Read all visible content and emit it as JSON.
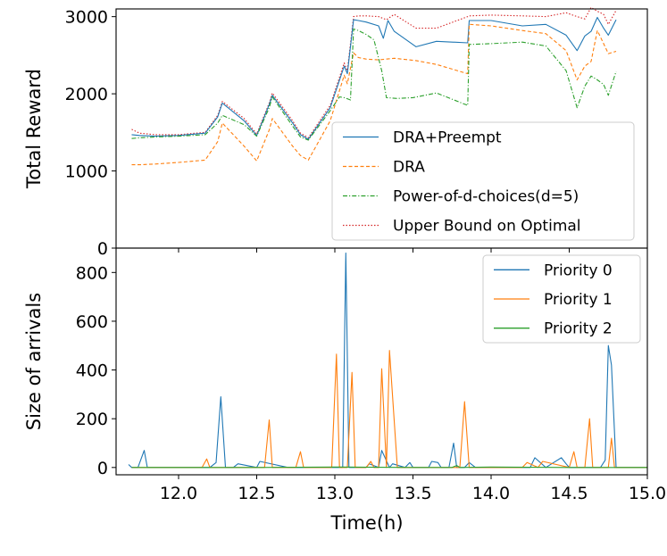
{
  "chart_data": [
    {
      "type": "line",
      "ylabel": "Total Reward",
      "xlabel": "",
      "xlim": [
        11.6,
        15.0
      ],
      "ylim": [
        0,
        3100
      ],
      "xticks": [
        12.0,
        12.5,
        13.0,
        13.5,
        14.0,
        14.5,
        15.0
      ],
      "yticks": [
        0,
        1000,
        2000,
        3000
      ],
      "legend": "lower-right",
      "series": [
        {
          "name": "Upper Bound on Optimal",
          "color": "#d62728",
          "dash": "1.5,2",
          "x": [
            11.7,
            11.75,
            11.85,
            12.0,
            12.17,
            12.25,
            12.28,
            12.42,
            12.5,
            12.58,
            12.6,
            12.73,
            12.78,
            12.83,
            12.97,
            13.06,
            13.08,
            13.12,
            13.15,
            13.2,
            13.28,
            13.33,
            13.38,
            13.52,
            13.65,
            13.85,
            13.86,
            14.0,
            14.2,
            14.35,
            14.48,
            14.55,
            14.6,
            14.64,
            14.68,
            14.72,
            14.75,
            14.8
          ],
          "values": [
            1540,
            1490,
            1470,
            1470,
            1500,
            1720,
            1900,
            1680,
            1480,
            1880,
            2010,
            1650,
            1490,
            1430,
            1850,
            2400,
            2300,
            3000,
            3010,
            3010,
            3000,
            2960,
            3030,
            2850,
            2850,
            3000,
            3010,
            3020,
            3010,
            3000,
            3050,
            3000,
            2970,
            3120,
            3070,
            3030,
            2900,
            3080
          ]
        },
        {
          "name": "DRA+Preempt",
          "color": "#1f77b4",
          "dash": "",
          "x": [
            11.7,
            11.75,
            11.85,
            12.0,
            12.17,
            12.25,
            12.28,
            12.42,
            12.5,
            12.58,
            12.6,
            12.73,
            12.78,
            12.83,
            12.97,
            13.06,
            13.08,
            13.12,
            13.15,
            13.2,
            13.28,
            13.31,
            13.34,
            13.38,
            13.52,
            13.65,
            13.85,
            13.86,
            14.0,
            14.2,
            14.35,
            14.48,
            14.55,
            14.6,
            14.64,
            14.68,
            14.72,
            14.75,
            14.8
          ],
          "values": [
            1470,
            1460,
            1450,
            1460,
            1490,
            1700,
            1880,
            1650,
            1460,
            1860,
            1980,
            1620,
            1470,
            1410,
            1820,
            2360,
            2260,
            2960,
            2950,
            2930,
            2880,
            2720,
            2950,
            2810,
            2610,
            2680,
            2660,
            2950,
            2950,
            2880,
            2900,
            2760,
            2560,
            2750,
            2810,
            2990,
            2850,
            2760,
            2960
          ]
        },
        {
          "name": "DRA",
          "color": "#ff7f0e",
          "dash": "4,2.5",
          "x": [
            11.7,
            11.75,
            11.85,
            12.0,
            12.17,
            12.25,
            12.28,
            12.42,
            12.5,
            12.58,
            12.6,
            12.73,
            12.78,
            12.83,
            12.97,
            13.06,
            13.08,
            13.12,
            13.15,
            13.2,
            13.28,
            13.38,
            13.52,
            13.65,
            13.85,
            13.86,
            14.0,
            14.2,
            14.35,
            14.48,
            14.55,
            14.6,
            14.64,
            14.68,
            14.72,
            14.75,
            14.8
          ],
          "values": [
            1080,
            1080,
            1090,
            1110,
            1140,
            1380,
            1620,
            1320,
            1130,
            1530,
            1680,
            1320,
            1200,
            1140,
            1650,
            2240,
            2130,
            2530,
            2470,
            2450,
            2440,
            2460,
            2430,
            2380,
            2260,
            2900,
            2880,
            2820,
            2780,
            2560,
            2180,
            2360,
            2420,
            2820,
            2650,
            2520,
            2550
          ]
        },
        {
          "name": "Power-of-d-choices(d=5)",
          "color": "#2ca02c",
          "dash": "5,2,1.2,2",
          "x": [
            11.7,
            11.75,
            11.85,
            12.0,
            12.17,
            12.25,
            12.28,
            12.42,
            12.5,
            12.58,
            12.6,
            12.73,
            12.78,
            12.83,
            12.97,
            13.03,
            13.06,
            13.1,
            13.12,
            13.15,
            13.2,
            13.25,
            13.3,
            13.33,
            13.4,
            13.5,
            13.65,
            13.85,
            13.86,
            14.0,
            14.2,
            14.35,
            14.48,
            14.55,
            14.6,
            14.64,
            14.68,
            14.72,
            14.75,
            14.8
          ],
          "values": [
            1420,
            1430,
            1440,
            1450,
            1470,
            1620,
            1720,
            1600,
            1450,
            1820,
            1960,
            1580,
            1440,
            1400,
            1780,
            1960,
            1950,
            1920,
            2840,
            2820,
            2770,
            2700,
            2300,
            1950,
            1940,
            1950,
            2010,
            1850,
            2640,
            2650,
            2670,
            2620,
            2300,
            1820,
            2100,
            2230,
            2180,
            2120,
            1980,
            2290
          ]
        }
      ]
    },
    {
      "type": "line",
      "ylabel": "Size of arrivals",
      "xlabel": "Time(h)",
      "xlim": [
        11.6,
        15.0
      ],
      "ylim": [
        -30,
        900
      ],
      "xticks": [
        12.0,
        12.5,
        13.0,
        13.5,
        14.0,
        14.5,
        15.0
      ],
      "xticklabels": [
        "12.0",
        "12.5",
        "13.0",
        "13.5",
        "14.0",
        "14.5",
        "15.0"
      ],
      "yticks": [
        0,
        200,
        400,
        600,
        800
      ],
      "legend": "top-right",
      "series": [
        {
          "name": "Priority 0",
          "color": "#1f77b4",
          "x": [
            11.68,
            11.7,
            11.74,
            11.78,
            11.8,
            12.0,
            12.2,
            12.24,
            12.27,
            12.3,
            12.35,
            12.38,
            12.5,
            12.52,
            12.7,
            12.95,
            13.0,
            13.05,
            13.07,
            13.09,
            13.2,
            13.22,
            13.28,
            13.3,
            13.35,
            13.37,
            13.45,
            13.48,
            13.5,
            13.6,
            13.62,
            13.66,
            13.68,
            13.73,
            13.76,
            13.78,
            13.83,
            13.86,
            13.9,
            14.1,
            14.2,
            14.25,
            14.28,
            14.35,
            14.4,
            14.45,
            14.48,
            14.5,
            14.6,
            14.7,
            14.73,
            14.75,
            14.77,
            14.8,
            15.0
          ],
          "values": [
            12,
            0,
            0,
            70,
            0,
            0,
            0,
            20,
            290,
            0,
            0,
            15,
            0,
            25,
            0,
            0,
            0,
            0,
            880,
            0,
            0,
            15,
            0,
            70,
            0,
            15,
            0,
            20,
            0,
            0,
            25,
            20,
            0,
            0,
            100,
            0,
            0,
            20,
            0,
            0,
            0,
            0,
            40,
            0,
            20,
            40,
            15,
            0,
            0,
            0,
            30,
            500,
            420,
            0,
            0
          ]
        },
        {
          "name": "Priority 1",
          "color": "#ff7f0e",
          "x": [
            11.7,
            12.15,
            12.18,
            12.2,
            12.55,
            12.58,
            12.6,
            12.75,
            12.78,
            12.8,
            12.98,
            13.01,
            13.03,
            13.08,
            13.11,
            13.13,
            13.15,
            13.2,
            13.23,
            13.25,
            13.28,
            13.3,
            13.33,
            13.35,
            13.4,
            13.5,
            13.8,
            13.83,
            13.86,
            14.2,
            14.23,
            14.3,
            14.33,
            14.5,
            14.53,
            14.55,
            14.6,
            14.63,
            14.65,
            14.75,
            14.77,
            14.79,
            15.0
          ],
          "values": [
            0,
            0,
            35,
            0,
            0,
            195,
            0,
            0,
            65,
            0,
            0,
            465,
            0,
            0,
            390,
            0,
            0,
            0,
            25,
            0,
            0,
            405,
            0,
            480,
            0,
            0,
            0,
            270,
            0,
            0,
            20,
            0,
            25,
            0,
            65,
            0,
            0,
            200,
            0,
            0,
            120,
            0,
            0
          ]
        },
        {
          "name": "Priority 2",
          "color": "#2ca02c",
          "x": [
            11.7,
            12.5,
            13.0,
            13.5,
            13.75,
            13.78,
            13.8,
            14.0,
            14.5,
            15.0
          ],
          "values": [
            0,
            0,
            2,
            0,
            0,
            8,
            0,
            2,
            0,
            0
          ]
        }
      ]
    }
  ]
}
